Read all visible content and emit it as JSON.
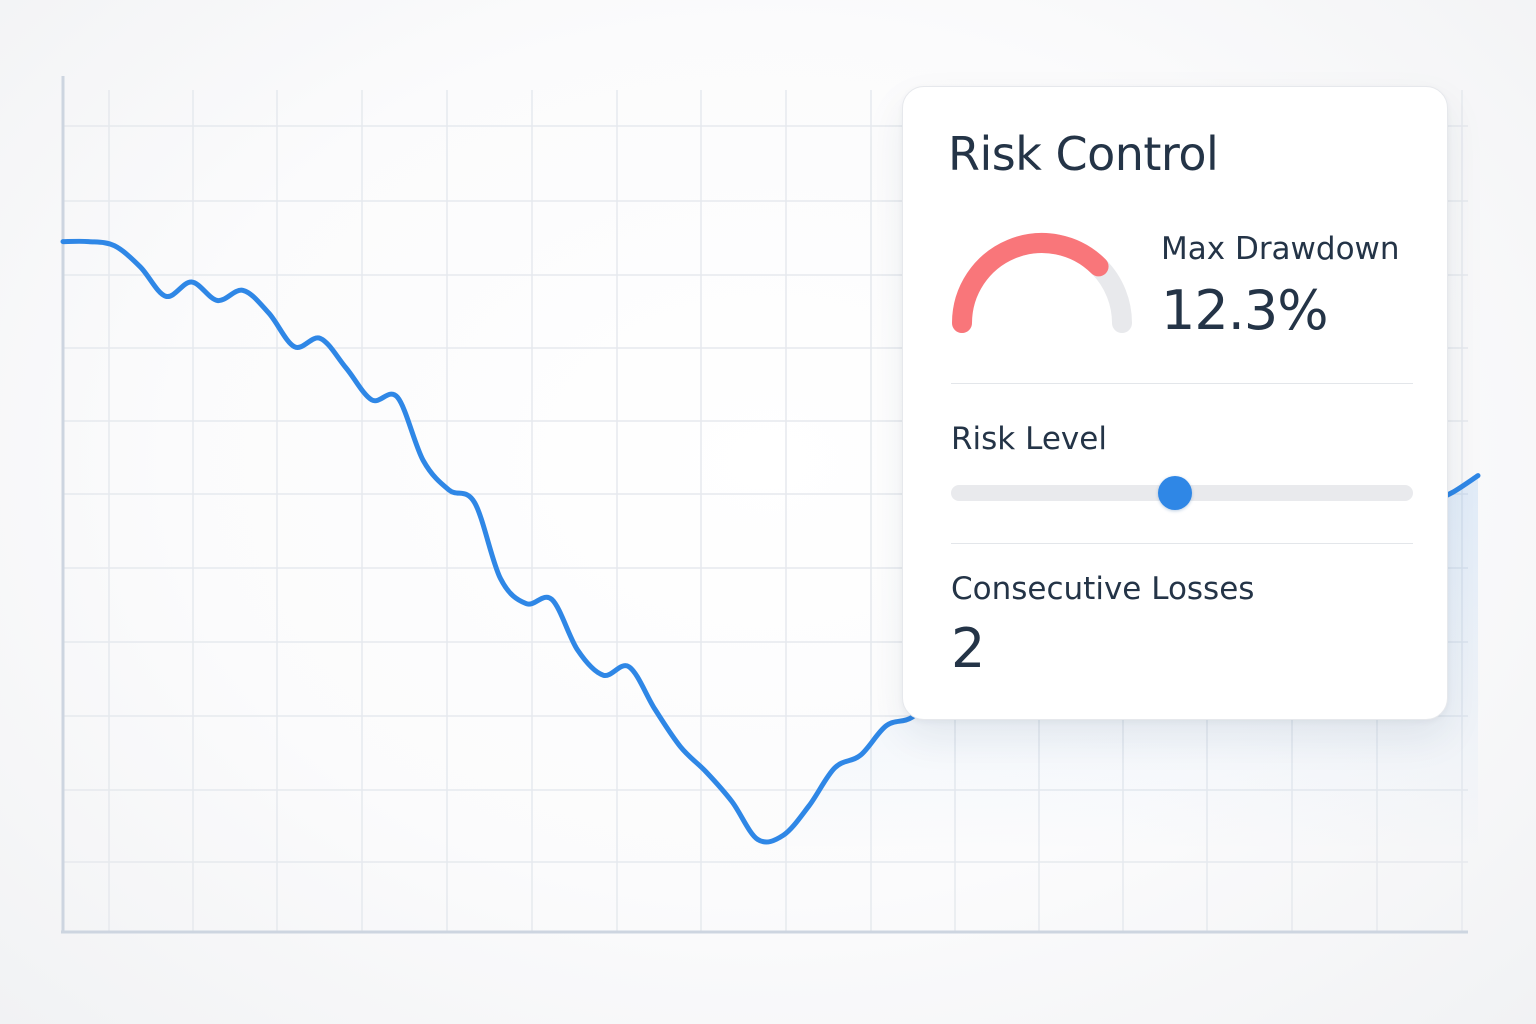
{
  "panel": {
    "title": "Risk Control",
    "max_drawdown": {
      "label": "Max Drawdown",
      "value": "12.3%",
      "gauge_fill_fraction": 0.75,
      "gauge_color": "#f9767a",
      "gauge_track_color": "#e8e9ec"
    },
    "risk_level": {
      "label": "Risk Level",
      "slider_fraction": 0.485,
      "thumb_color": "#2f87e6",
      "track_color": "#e9eaed"
    },
    "consecutive_losses": {
      "label": "Consecutive Losses",
      "value": "2"
    }
  },
  "chart_data": {
    "type": "line",
    "title": "",
    "xlabel": "",
    "ylabel": "",
    "grid": true,
    "line_color": "#2f87e6",
    "x": [
      0,
      1,
      2,
      3,
      4,
      5,
      6,
      7,
      8,
      9,
      10,
      11,
      12,
      13,
      14,
      15,
      16,
      17,
      18,
      19,
      20,
      21,
      22,
      23,
      24,
      25,
      26,
      27,
      28,
      29,
      30,
      31,
      32,
      33,
      34,
      35,
      36,
      37,
      38,
      39,
      40,
      41,
      42,
      43,
      44,
      45,
      46,
      47,
      48,
      49,
      50,
      51,
      52,
      53,
      54,
      55
    ],
    "values": [
      8.2,
      8.2,
      8.15,
      7.9,
      7.55,
      7.72,
      7.5,
      7.62,
      7.35,
      6.95,
      7.05,
      6.7,
      6.32,
      6.35,
      5.6,
      5.25,
      5.1,
      4.2,
      3.9,
      3.95,
      3.35,
      3.05,
      3.15,
      2.65,
      2.2,
      1.9,
      1.55,
      1.1,
      1.15,
      1.5,
      1.95,
      2.1,
      2.45,
      2.55,
      2.85,
      3.35,
      3.45,
      3.1,
      3.3,
      3.4,
      3.6,
      3.8,
      3.92,
      3.85,
      4.05,
      4.15,
      4.35,
      4.42,
      4.55,
      4.68,
      4.8,
      4.82,
      4.95,
      5.08,
      5.22,
      5.42
    ],
    "ylim": [
      0,
      10
    ],
    "xlim": [
      0,
      55
    ]
  }
}
